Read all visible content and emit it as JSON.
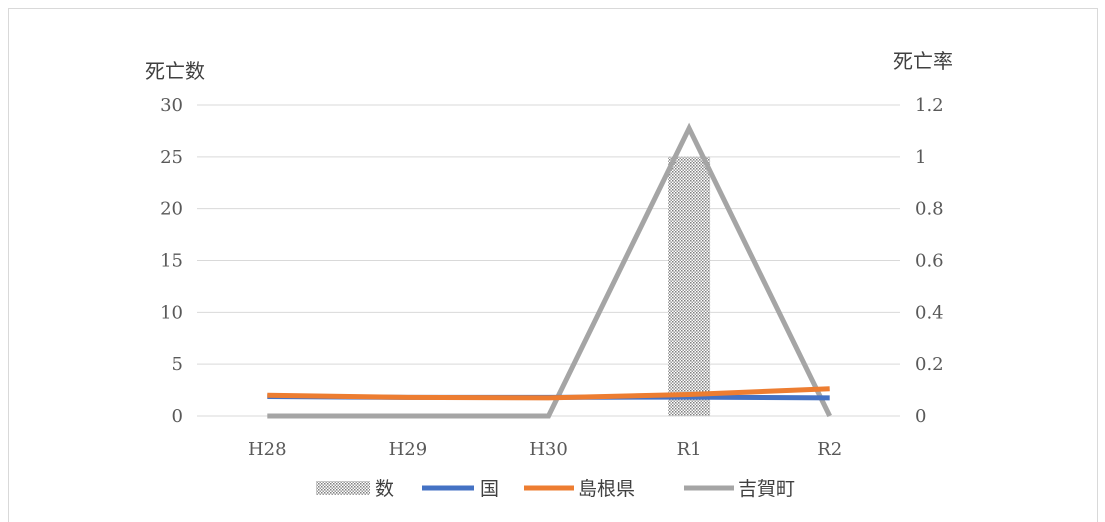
{
  "chart_data": {
    "type": "bar+line",
    "categories": [
      "H28",
      "H29",
      "H30",
      "R1",
      "R2"
    ],
    "y_left": {
      "label": "死亡数",
      "ticks": [
        "0",
        "5",
        "10",
        "15",
        "20",
        "25",
        "30"
      ],
      "lim": [
        0,
        30
      ]
    },
    "y_right": {
      "label": "死亡率",
      "ticks": [
        "0",
        "0.2",
        "0.4",
        "0.6",
        "0.8",
        "1",
        "1.2"
      ],
      "lim": [
        0,
        1.2
      ]
    },
    "bars": {
      "name": "数",
      "axis": "left",
      "values": [
        0,
        0,
        0,
        25,
        0
      ],
      "pattern": "dotted"
    },
    "series": [
      {
        "name": "国",
        "axis": "right",
        "color": "#4472c4",
        "values": [
          0.075,
          0.072,
          0.072,
          0.073,
          0.07
        ]
      },
      {
        "name": "島根県",
        "axis": "right",
        "color": "#ed7d31",
        "values": [
          0.08,
          0.072,
          0.07,
          0.083,
          0.105
        ]
      },
      {
        "name": "吉賀町",
        "axis": "right",
        "color": "#a5a5a5",
        "values": [
          0,
          0,
          0,
          1.11,
          0
        ]
      }
    ],
    "grid": true,
    "legend": "bottom"
  }
}
